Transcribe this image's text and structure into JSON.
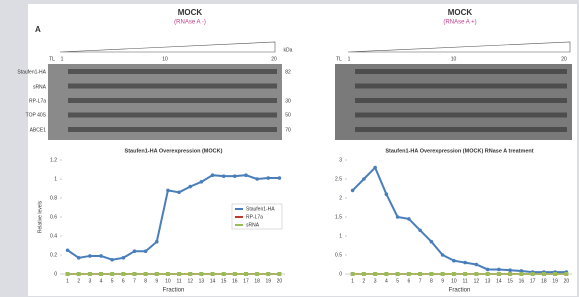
{
  "panel_label": "A",
  "blots": [
    {
      "title": "MOCK",
      "subtitle": "(RNAse A -)",
      "fractions": [
        "TL",
        "1",
        "10",
        "20"
      ]
    },
    {
      "title": "MOCK",
      "subtitle": "(RNAse A +)",
      "fractions": [
        "TL",
        "1",
        "10",
        "20"
      ]
    }
  ],
  "row_labels": [
    "Staufen1-HA",
    "sRNA",
    "RP-L7a",
    "TOP 40S",
    "ABCE1"
  ],
  "kda_header": "kDa",
  "kda_labels": [
    "82",
    "30",
    "50",
    "70"
  ],
  "chart_data": [
    {
      "type": "line",
      "title": "Staufen1-HA Overexpression (MOCK)",
      "y_label": "Relative levels",
      "x_label": "Fraction",
      "categories": [
        "1",
        "2",
        "3",
        "4",
        "5",
        "6",
        "7",
        "8",
        "9",
        "10",
        "11",
        "12",
        "13",
        "14",
        "15",
        "16",
        "17",
        "18",
        "19",
        "20"
      ],
      "ylim": [
        0,
        1.2
      ],
      "yticks": [
        0,
        0.2,
        0.4,
        0.6,
        0.8,
        1,
        1.2
      ],
      "legend": "right",
      "series": [
        {
          "name": "Staufen1-HA",
          "color": "#4a7ebb",
          "values": [
            0.25,
            0.17,
            0.19,
            0.19,
            0.15,
            0.17,
            0.24,
            0.24,
            0.34,
            0.88,
            0.86,
            0.92,
            0.97,
            1.04,
            1.03,
            1.03,
            1.04,
            1.0,
            1.01,
            1.01
          ]
        },
        {
          "name": "RP-L7a",
          "color": "#c0392b",
          "values": [
            0,
            0,
            0,
            0,
            0,
            0,
            0,
            0,
            0,
            0,
            0,
            0,
            0,
            0,
            0,
            0,
            0,
            0,
            0,
            0
          ]
        },
        {
          "name": "sRNA",
          "color": "#9bbb59",
          "values": [
            0,
            0,
            0,
            0,
            0,
            0,
            0,
            0,
            0,
            0,
            0,
            0,
            0,
            0,
            0,
            0,
            0,
            0,
            0,
            0
          ]
        }
      ]
    },
    {
      "type": "line",
      "title": "Staufen1-HA Overexpression (MOCK) RNase A treatment",
      "x_label": "Fraction",
      "categories": [
        "1",
        "2",
        "3",
        "4",
        "5",
        "6",
        "7",
        "8",
        "9",
        "10",
        "11",
        "12",
        "13",
        "14",
        "15",
        "16",
        "17",
        "18",
        "19",
        "20"
      ],
      "ylim": [
        0,
        3
      ],
      "yticks": [
        0,
        0.5,
        1,
        1.5,
        2,
        2.5,
        3
      ],
      "series": [
        {
          "color": "#4a7ebb",
          "values": [
            2.2,
            2.5,
            2.8,
            2.1,
            1.5,
            1.45,
            1.15,
            0.85,
            0.5,
            0.35,
            0.3,
            0.25,
            0.12,
            0.12,
            0.1,
            0.08,
            0.05,
            0.05,
            0.05,
            0.05
          ]
        },
        {
          "color": "#c0392b",
          "values": [
            0,
            0,
            0,
            0,
            0,
            0,
            0,
            0,
            0,
            0,
            0,
            0,
            0,
            0,
            0,
            0,
            0,
            0,
            0,
            0
          ]
        },
        {
          "color": "#9bbb59",
          "values": [
            0,
            0,
            0,
            0,
            0,
            0,
            0,
            0,
            0,
            0,
            0,
            0,
            0,
            0,
            0,
            0,
            0,
            0,
            0,
            0
          ]
        }
      ]
    }
  ]
}
